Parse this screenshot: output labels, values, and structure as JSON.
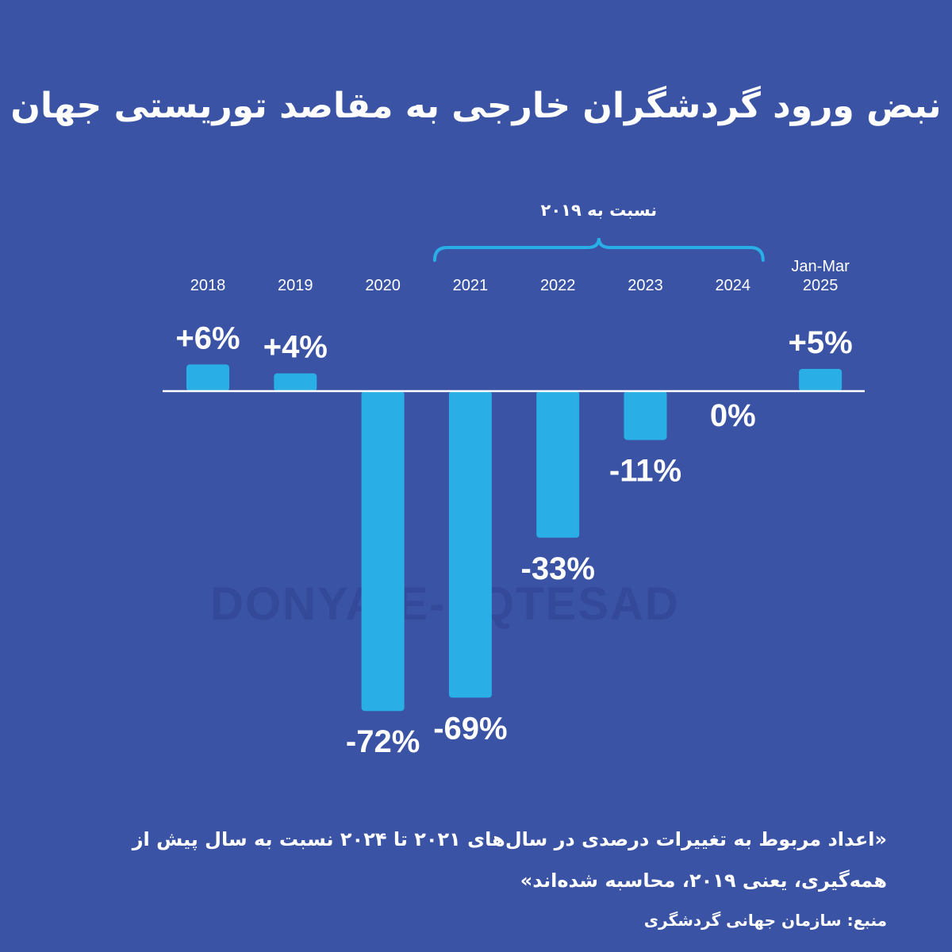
{
  "title": "نبض ورود گردشگران خارجی به مقاصد توریستی جهان",
  "watermark": "DONYA-E-EQTESAD",
  "colors": {
    "background": "#3a53a5",
    "bar": "#29aee6",
    "text": "#ffffff"
  },
  "chart_data": {
    "type": "bar",
    "categories": [
      "2018",
      "2019",
      "2020",
      "2021",
      "2022",
      "2023",
      "2024",
      "Jan-Mar 2025"
    ],
    "category_lines": [
      [
        "2018"
      ],
      [
        "2019"
      ],
      [
        "2020"
      ],
      [
        "2021"
      ],
      [
        "2022"
      ],
      [
        "2023"
      ],
      [
        "2024"
      ],
      [
        "Jan-Mar",
        "2025"
      ]
    ],
    "values": [
      6,
      4,
      -72,
      -69,
      -33,
      -11,
      0,
      5
    ],
    "data_labels": [
      "+6%",
      "+4%",
      "-72%",
      "-69%",
      "-33%",
      "-11%",
      "0%",
      "+5%"
    ],
    "bracket_label": "نسبت به ۲۰۱۹",
    "bracket_categories": [
      "2021",
      "2022",
      "2023",
      "2024"
    ],
    "unit": "%",
    "grid": false
  },
  "note": "«اعداد مربوط به تغییرات درصدی در سال‌های ۲۰۲۱ تا ۲۰۲۴ نسبت به سال پیش از همه‌گیری، یعنی ۲۰۱۹، محاسبه شده‌اند»",
  "source": "منبع: سازمان جهانی گردشگری"
}
